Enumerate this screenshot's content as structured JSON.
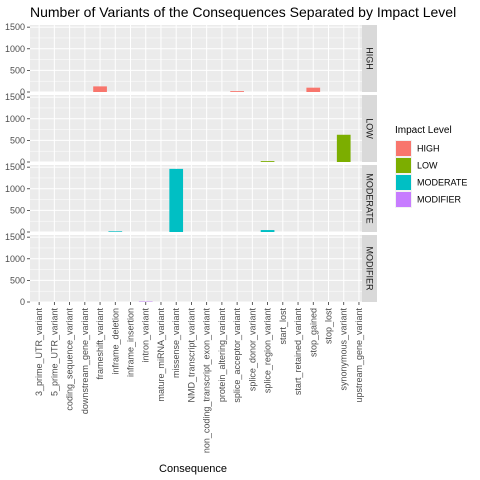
{
  "chart_data": {
    "type": "bar",
    "title": "Number of Variants of the Consequences Separated by Impact Level",
    "xlabel": "Consequence",
    "ylabel": "",
    "ylim": [
      0,
      1550
    ],
    "yticks": [
      0,
      500,
      1000,
      1500
    ],
    "facet_by": "Impact Level",
    "legend_title": "Impact Level",
    "legend_position": "right",
    "grid": true,
    "categories": [
      "3_prime_UTR_variant",
      "5_prime_UTR_variant",
      "coding_sequence_variant",
      "downstream_gene_variant",
      "frameshift_variant",
      "inframe_deletion",
      "inframe_insertion",
      "intron_variant",
      "mature_miRNA_variant",
      "missense_variant",
      "NMD_transcript_variant",
      "non_coding_transcript_exon_variant",
      "protein_altering_variant",
      "splice_acceptor_variant",
      "splice_donor_variant",
      "splice_region_variant",
      "start_lost",
      "start_retained_variant",
      "stop_gained",
      "stop_lost",
      "synonymous_variant",
      "upstream_gene_variant"
    ],
    "series": [
      {
        "name": "HIGH",
        "color": "#F8766D",
        "values": [
          0,
          0,
          0,
          0,
          130,
          0,
          0,
          0,
          0,
          0,
          0,
          0,
          0,
          20,
          0,
          0,
          0,
          0,
          100,
          0,
          0,
          0
        ]
      },
      {
        "name": "LOW",
        "color": "#7CAE00",
        "values": [
          0,
          0,
          0,
          0,
          0,
          0,
          0,
          0,
          0,
          0,
          0,
          0,
          0,
          0,
          0,
          20,
          0,
          0,
          0,
          0,
          630,
          0
        ]
      },
      {
        "name": "MODERATE",
        "color": "#00BFC4",
        "values": [
          0,
          0,
          0,
          0,
          0,
          15,
          0,
          0,
          0,
          1460,
          0,
          0,
          0,
          0,
          0,
          45,
          0,
          0,
          0,
          0,
          0,
          0
        ]
      },
      {
        "name": "MODIFIER",
        "color": "#C77CFF",
        "values": [
          0,
          0,
          0,
          0,
          0,
          0,
          0,
          10,
          0,
          0,
          0,
          0,
          0,
          0,
          0,
          0,
          0,
          0,
          0,
          0,
          0,
          0
        ]
      }
    ]
  }
}
